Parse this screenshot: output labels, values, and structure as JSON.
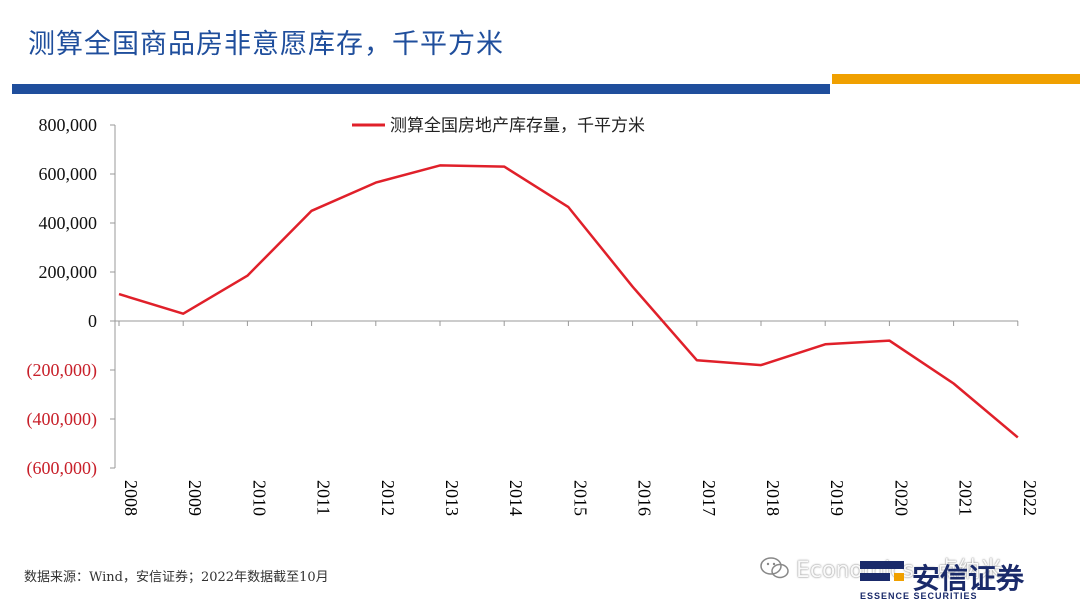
{
  "title": "测算全国商品房非意愿库存，千平方米",
  "colors": {
    "title": "#1f4e9c",
    "bar_blue": "#1f4e9c",
    "bar_orange": "#f0a000",
    "series": "#e0202a",
    "negative_tick": "#c8202a",
    "logo": "#1a2a6a"
  },
  "chart_data": {
    "type": "line",
    "x": [
      "2008",
      "2009",
      "2010",
      "2011",
      "2012",
      "2013",
      "2014",
      "2015",
      "2016",
      "2017",
      "2018",
      "2019",
      "2020",
      "2021",
      "2022"
    ],
    "series": [
      {
        "name": "测算全国房地产库存量，千平方米",
        "values": [
          110000,
          30000,
          185000,
          450000,
          565000,
          635000,
          630000,
          465000,
          140000,
          -160000,
          -180000,
          -95000,
          -80000,
          -255000,
          -475000
        ]
      }
    ],
    "ylim": [
      -600000,
      800000
    ],
    "yticks": [
      800000,
      600000,
      400000,
      200000,
      0,
      -200000,
      -400000,
      -600000
    ],
    "ytick_labels": [
      "800,000",
      "600,000",
      "400,000",
      "200,000",
      "0",
      "(200,000)",
      "(400,000)",
      "(600,000)"
    ],
    "legend_position": "top-center",
    "grid": false,
    "xlabel": "",
    "ylabel": ""
  },
  "footer": {
    "source": "数据来源：Wind，安信证券；2022年数据截至10月"
  },
  "watermark": {
    "text": "Economics一点纳米",
    "icon": "wechat-icon"
  },
  "logo": {
    "cn": "安信证券",
    "en": "ESSENCE SECURITIES"
  }
}
